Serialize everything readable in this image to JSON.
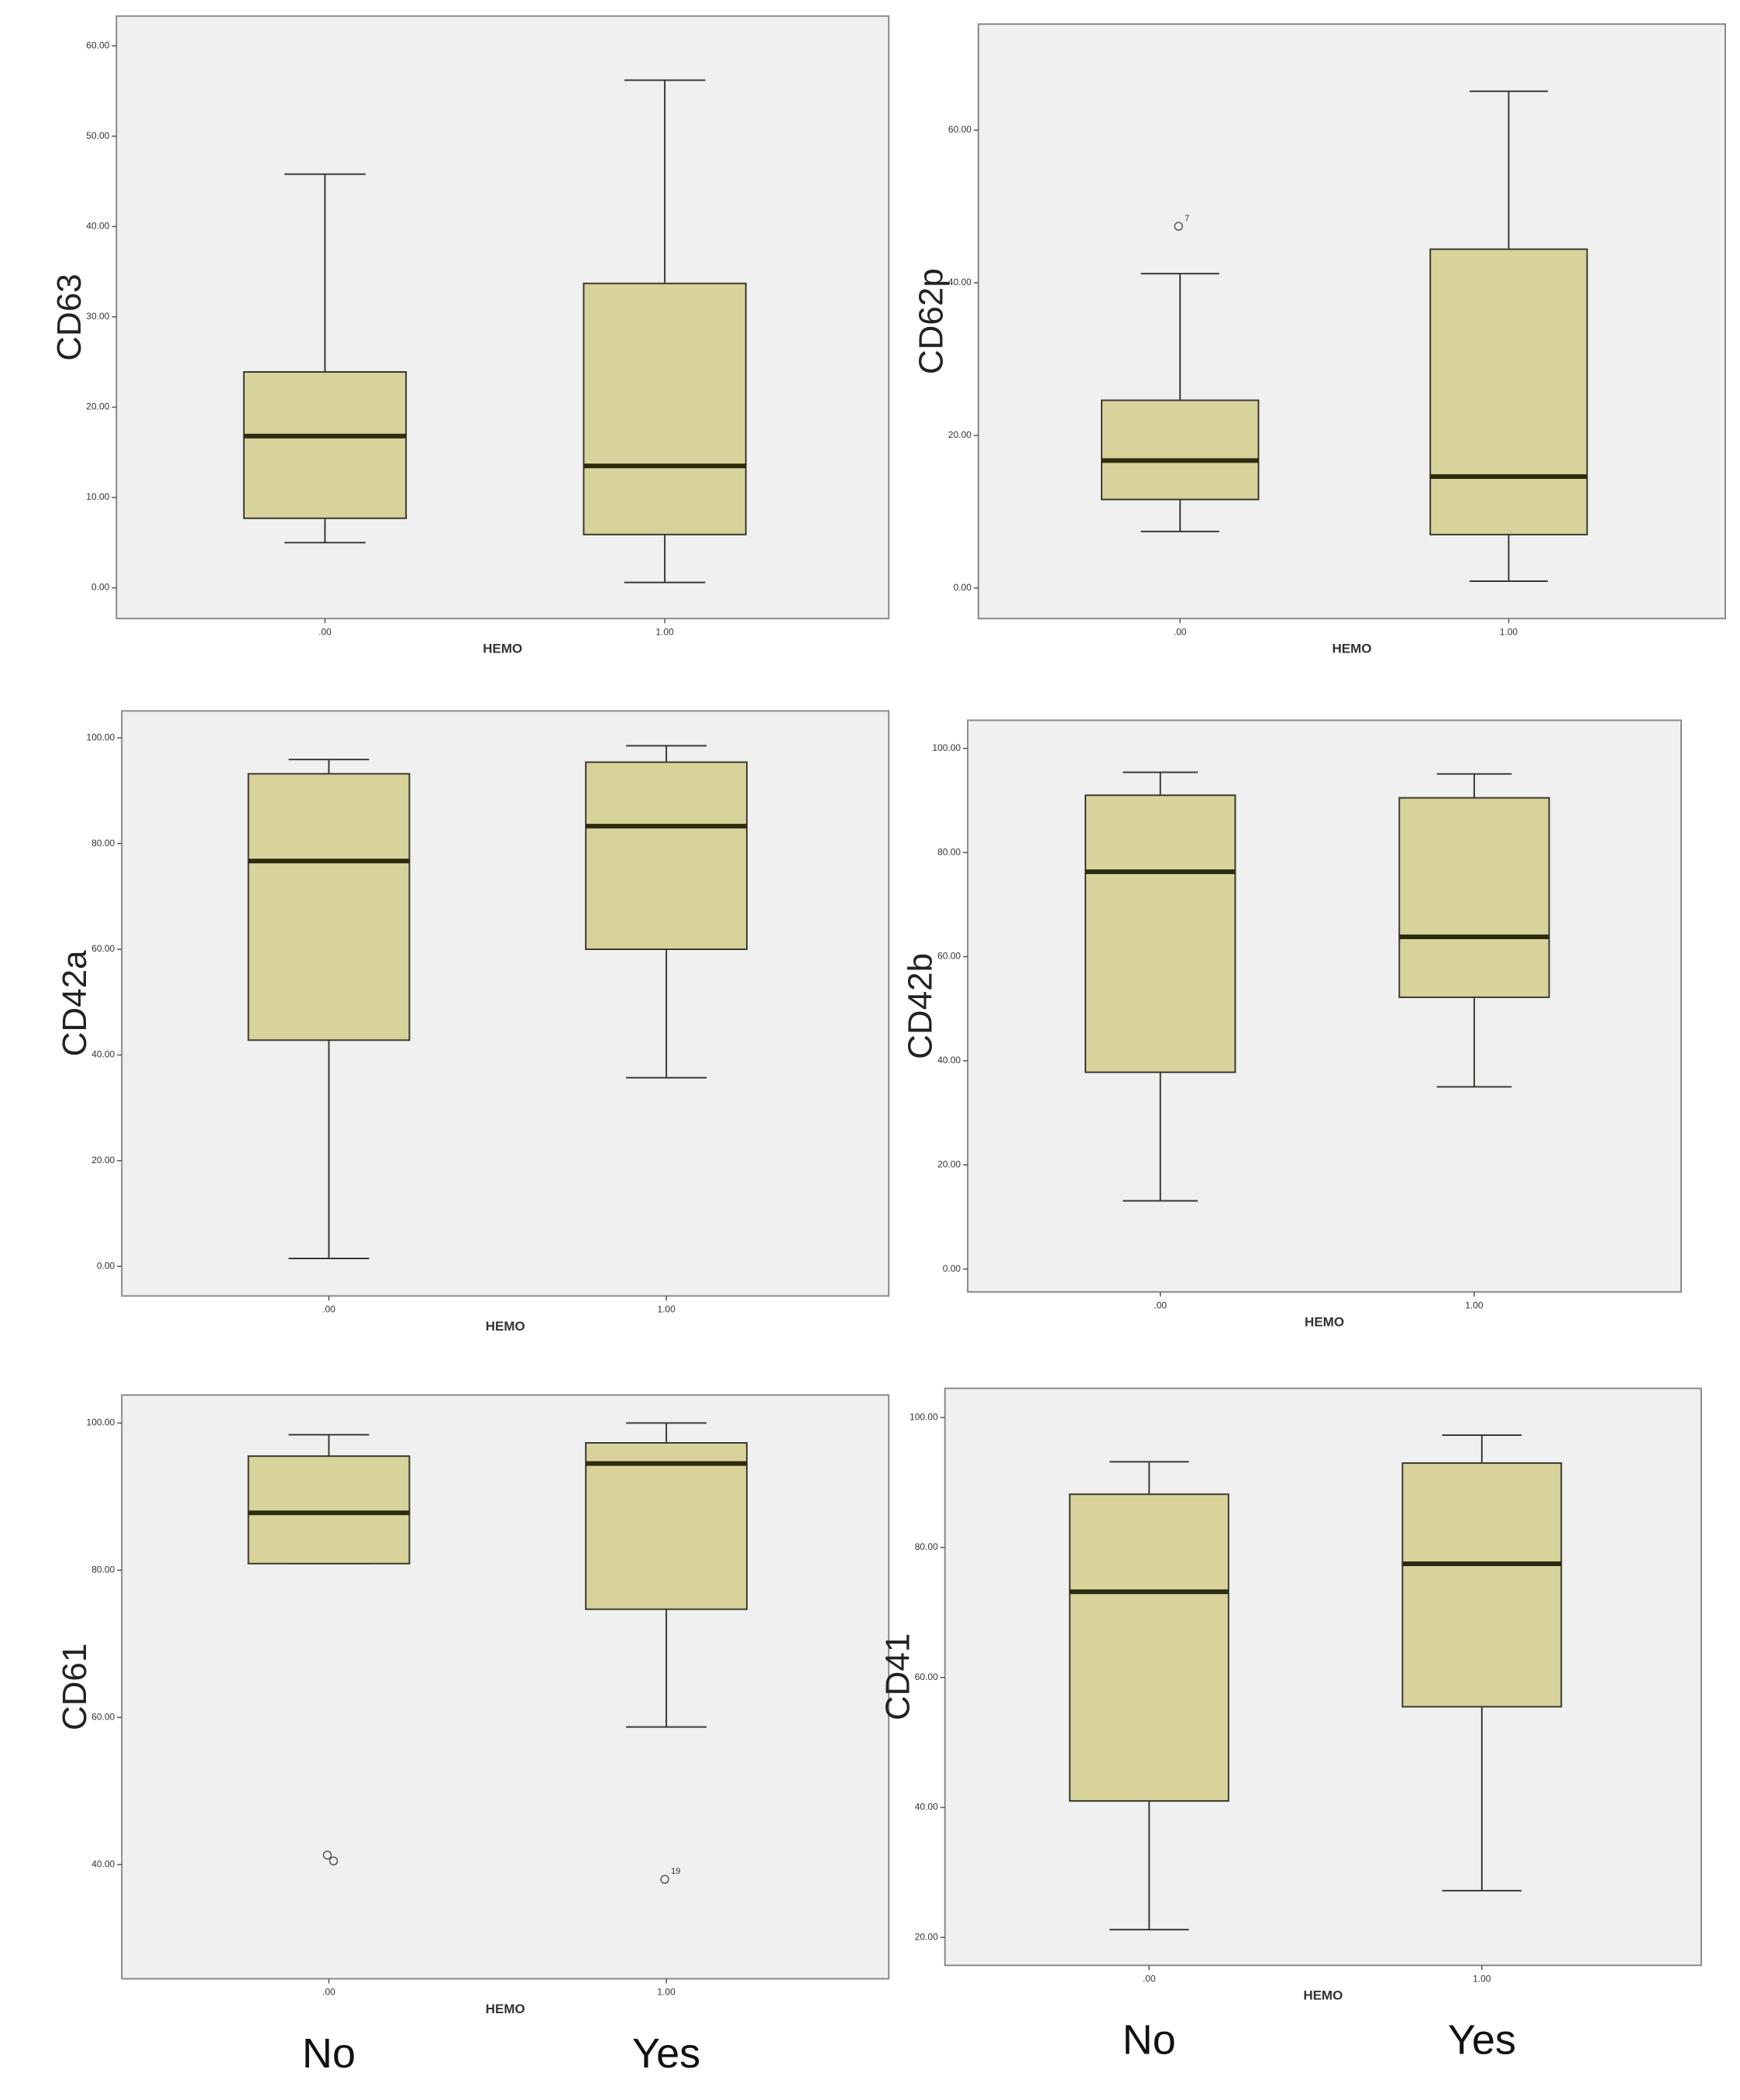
{
  "chart_data": [
    {
      "type": "box",
      "y_label": "CD63",
      "x_label": "HEMO",
      "categories": [
        ".00",
        "1.00"
      ],
      "boxes": [
        {
          "whislo": 5.0,
          "q1": 7.7,
          "med": 16.8,
          "q3": 23.9,
          "whishi": 45.8,
          "fliers": []
        },
        {
          "whislo": 0.6,
          "q1": 5.9,
          "med": 13.5,
          "q3": 33.7,
          "whishi": 56.2,
          "fliers": []
        }
      ],
      "ylim": [
        -3.4,
        63.3
      ],
      "yticks": [
        {
          "value": 0,
          "label": "0.00"
        },
        {
          "value": 10,
          "label": "10.00"
        },
        {
          "value": 20,
          "label": "20.00"
        },
        {
          "value": 30,
          "label": "30.00"
        },
        {
          "value": 40,
          "label": "40.00"
        },
        {
          "value": 50,
          "label": "50.00"
        },
        {
          "value": 60,
          "label": "60.00"
        }
      ],
      "box_color": "#d8d39b"
    },
    {
      "type": "box",
      "y_label": "CD62p",
      "x_label": "HEMO",
      "categories": [
        ".00",
        "1.00"
      ],
      "boxes": [
        {
          "whislo": 7.4,
          "q1": 11.6,
          "med": 16.7,
          "q3": 24.6,
          "whishi": 41.2,
          "fliers": [
            47.4
          ],
          "flier_labels": [
            "7"
          ]
        },
        {
          "whislo": 0.9,
          "q1": 7.0,
          "med": 14.6,
          "q3": 44.4,
          "whishi": 65.1,
          "fliers": []
        }
      ],
      "ylim": [
        -4.0,
        73.9
      ],
      "yticks": [
        {
          "value": 0,
          "label": "0.00"
        },
        {
          "value": 20,
          "label": "20.00"
        },
        {
          "value": 40,
          "label": "40.00"
        },
        {
          "value": 60,
          "label": "60.00"
        }
      ],
      "box_color": "#d8d39b"
    },
    {
      "type": "box",
      "y_label": "CD42a",
      "x_label": "HEMO",
      "categories": [
        ".00",
        "1.00"
      ],
      "boxes": [
        {
          "whislo": 1.5,
          "q1": 42.8,
          "med": 76.7,
          "q3": 93.2,
          "whishi": 95.9,
          "fliers": []
        },
        {
          "whislo": 35.7,
          "q1": 60.0,
          "med": 83.3,
          "q3": 95.4,
          "whishi": 98.5,
          "fliers": []
        }
      ],
      "ylim": [
        -5.6,
        105.1
      ],
      "yticks": [
        {
          "value": 0,
          "label": "0.00"
        },
        {
          "value": 20,
          "label": "20.00"
        },
        {
          "value": 40,
          "label": "40.00"
        },
        {
          "value": 60,
          "label": "60.00"
        },
        {
          "value": 80,
          "label": "80.00"
        },
        {
          "value": 100,
          "label": "100.00"
        }
      ],
      "box_color": "#d8d39b"
    },
    {
      "type": "box",
      "y_label": "CD42b",
      "x_label": "HEMO",
      "categories": [
        ".00",
        "1.00"
      ],
      "boxes": [
        {
          "whislo": 13.1,
          "q1": 37.8,
          "med": 76.3,
          "q3": 91.0,
          "whishi": 95.4,
          "fliers": []
        },
        {
          "whislo": 35.0,
          "q1": 52.2,
          "med": 63.8,
          "q3": 90.5,
          "whishi": 95.1,
          "fliers": []
        }
      ],
      "ylim": [
        -4.4,
        105.4
      ],
      "yticks": [
        {
          "value": 0,
          "label": "0.00"
        },
        {
          "value": 20,
          "label": "20.00"
        },
        {
          "value": 40,
          "label": "40.00"
        },
        {
          "value": 60,
          "label": "60.00"
        },
        {
          "value": 80,
          "label": "80.00"
        },
        {
          "value": 100,
          "label": "100.00"
        }
      ],
      "box_color": "#d8d39b"
    },
    {
      "type": "box",
      "y_label": "CD61",
      "x_label": "HEMO",
      "categories": [
        ".00",
        "1.00"
      ],
      "group_labels": [
        "No",
        "Yes"
      ],
      "boxes": [
        {
          "whislo": 80.9,
          "q1": 80.9,
          "med": 87.8,
          "q3": 95.5,
          "whishi": 98.4,
          "fliers": [
            41.3,
            40.5
          ]
        },
        {
          "whislo": 58.7,
          "q1": 74.7,
          "med": 94.5,
          "q3": 97.3,
          "whishi": 100.0,
          "fliers": [
            38.0
          ],
          "flier_labels": [
            "19"
          ]
        }
      ],
      "ylim": [
        24.5,
        103.8
      ],
      "yticks": [
        {
          "value": 40,
          "label": "40.00"
        },
        {
          "value": 60,
          "label": "60.00"
        },
        {
          "value": 80,
          "label": "80.00"
        },
        {
          "value": 100,
          "label": "100.00"
        }
      ],
      "box_color": "#d8d39b"
    },
    {
      "type": "box",
      "y_label": "CD41",
      "x_label": "HEMO",
      "categories": [
        ".00",
        "1.00"
      ],
      "group_labels": [
        "No",
        "Yes"
      ],
      "boxes": [
        {
          "whislo": 21.2,
          "q1": 41.0,
          "med": 73.2,
          "q3": 88.2,
          "whishi": 93.2,
          "fliers": []
        },
        {
          "whislo": 27.2,
          "q1": 55.5,
          "med": 77.5,
          "q3": 93.0,
          "whishi": 97.3,
          "fliers": []
        }
      ],
      "ylim": [
        15.7,
        104.5
      ],
      "yticks": [
        {
          "value": 20,
          "label": "20.00"
        },
        {
          "value": 40,
          "label": "40.00"
        },
        {
          "value": 60,
          "label": "60.00"
        },
        {
          "value": 80,
          "label": "80.00"
        },
        {
          "value": 100,
          "label": "100.00"
        }
      ],
      "box_color": "#d8d39b"
    }
  ]
}
